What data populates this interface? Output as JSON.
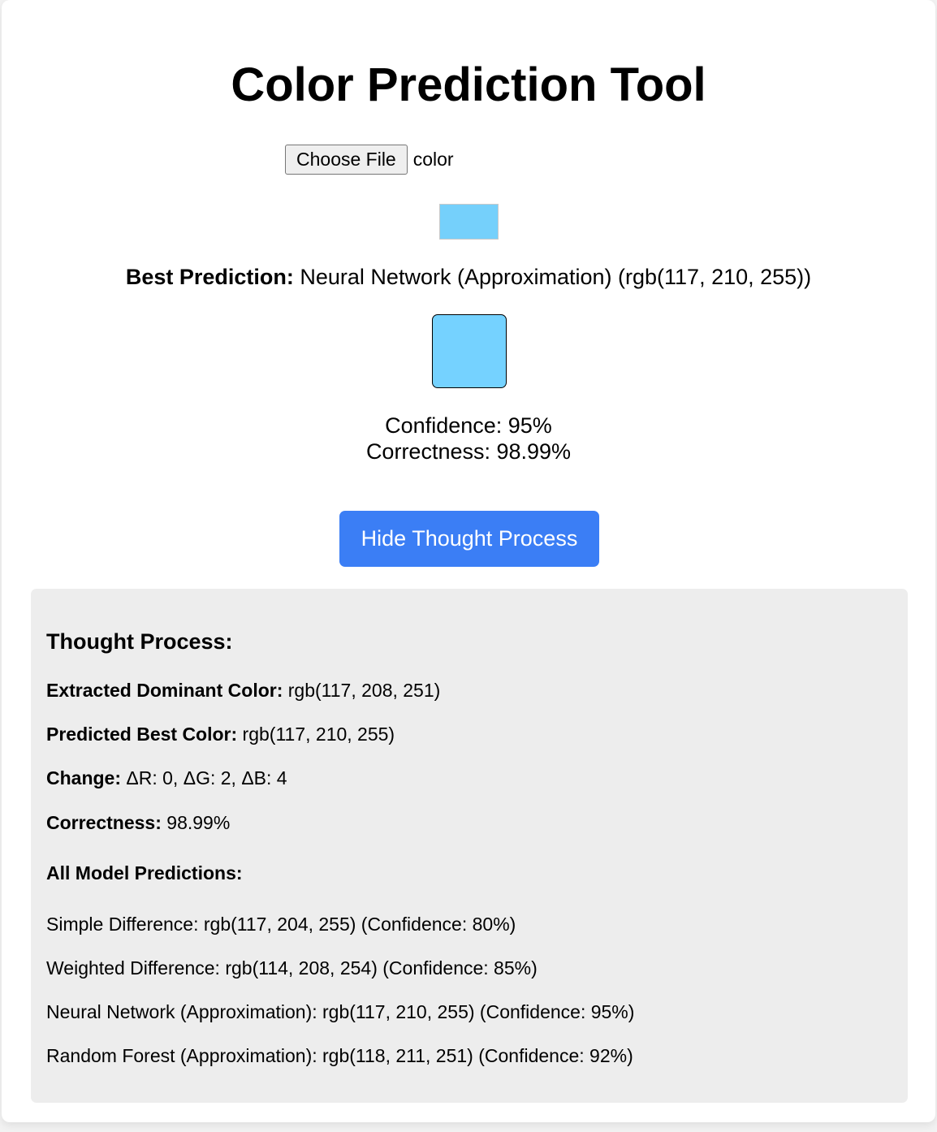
{
  "app": {
    "title": "Color Prediction Tool"
  },
  "file_input": {
    "button_label": "Choose File",
    "file_name": "color"
  },
  "swatches": {
    "extracted_color": "rgb(117, 208, 251)",
    "predicted_color": "rgb(117, 210, 255)"
  },
  "best_prediction": {
    "label": "Best Prediction:",
    "value": "Neural Network (Approximation) (rgb(117, 210, 255))"
  },
  "metrics": {
    "confidence": "Confidence: 95%",
    "correctness": "Correctness: 98.99%"
  },
  "toggle_button": {
    "label": "Hide Thought Process",
    "color": "#3b7ef5"
  },
  "thought_process": {
    "heading": "Thought Process:",
    "extracted_label": "Extracted Dominant Color:",
    "extracted_value": "rgb(117, 208, 251)",
    "predicted_label": "Predicted Best Color:",
    "predicted_value": "rgb(117, 210, 255)",
    "change_label": "Change:",
    "change_value": "ΔR: 0, ΔG: 2, ΔB: 4",
    "correctness_label": "Correctness:",
    "correctness_value": "98.99%",
    "all_models_heading": "All Model Predictions:",
    "models": [
      "Simple Difference: rgb(117, 204, 255) (Confidence: 80%)",
      "Weighted Difference: rgb(114, 208, 254) (Confidence: 85%)",
      "Neural Network (Approximation): rgb(117, 210, 255) (Confidence: 95%)",
      "Random Forest (Approximation): rgb(118, 211, 251) (Confidence: 92%)"
    ]
  }
}
